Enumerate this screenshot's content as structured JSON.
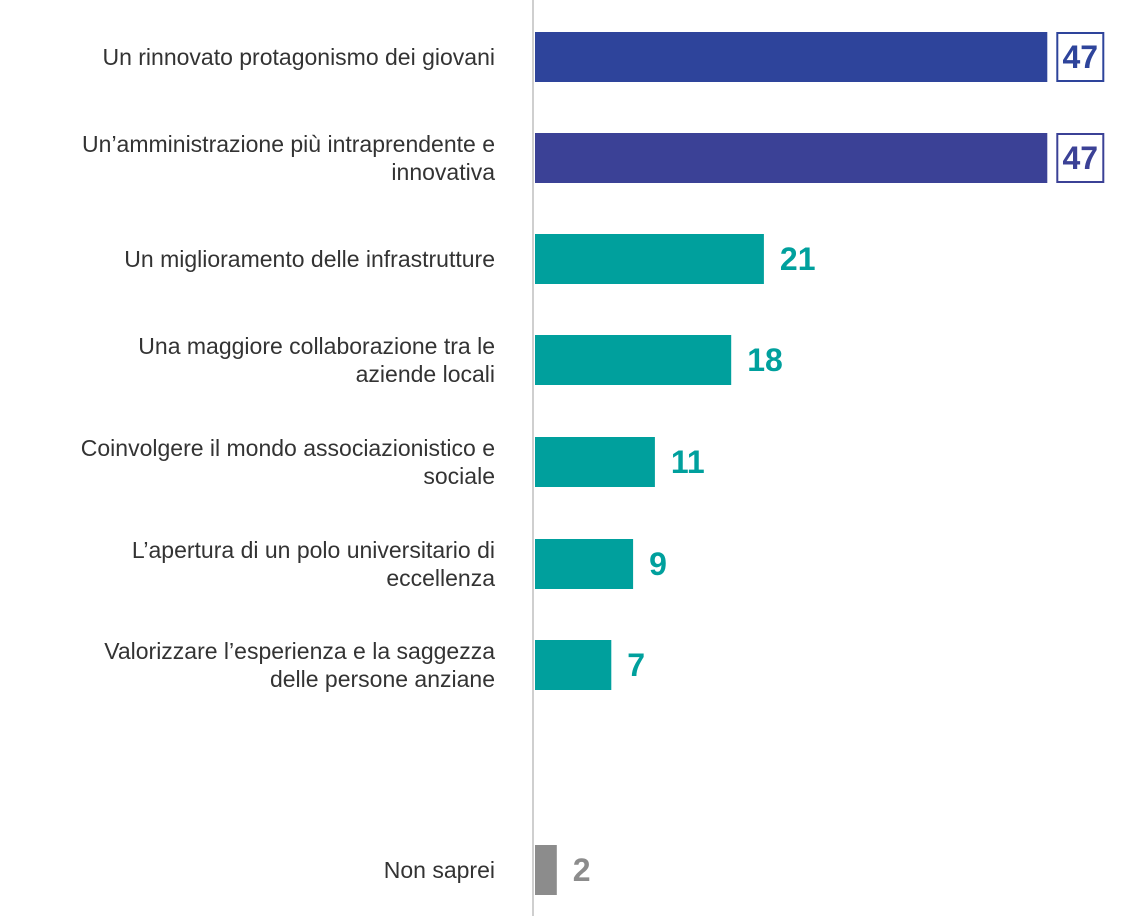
{
  "chart_data": {
    "type": "bar",
    "orientation": "horizontal",
    "categories": [
      "Un rinnovato protagonismo dei giovani",
      "Un’amministrazione più intraprendente e innovativa",
      "Un miglioramento delle infrastrutture",
      "Una maggiore collaborazione tra le aziende locali",
      "Coinvolgere il mondo associazionistico e sociale",
      "L’apertura di un polo universitario di eccellenza",
      "Valorizzare l’esperienza e la saggezza delle persone anziane",
      "Non saprei"
    ],
    "category_lines": [
      [
        "Un rinnovato protagonismo dei giovani"
      ],
      [
        "Un’amministrazione più intraprendente e",
        "innovativa"
      ],
      [
        "Un miglioramento delle infrastrutture"
      ],
      [
        "Una maggiore collaborazione tra le",
        "aziende locali"
      ],
      [
        "Coinvolgere il mondo associazionistico e",
        "sociale"
      ],
      [
        "L’apertura di un polo universitario di",
        "eccellenza"
      ],
      [
        "Valorizzare l’esperienza e la saggezza",
        "delle persone anziane"
      ],
      [
        "Non saprei"
      ]
    ],
    "values": [
      47,
      47,
      21,
      18,
      11,
      9,
      7,
      2
    ],
    "value_labels": [
      "47",
      "47",
      "21",
      "18",
      "11",
      "9",
      "7",
      "2"
    ],
    "highlighted": [
      true,
      true,
      false,
      false,
      false,
      false,
      false,
      false
    ],
    "colors": [
      "#2e449b",
      "#3b4196",
      "#00a09d",
      "#00a09d",
      "#00a09d",
      "#00a09d",
      "#00a09d",
      "#8c8c8c"
    ],
    "label_colors": [
      "#2e449b",
      "#3b4196",
      "#00a09d",
      "#00a09d",
      "#00a09d",
      "#00a09d",
      "#00a09d",
      "#8c8c8c"
    ],
    "title": "",
    "xlabel": "",
    "ylabel": "",
    "xlim": [
      0,
      47
    ],
    "grid": false,
    "legend": "none"
  }
}
